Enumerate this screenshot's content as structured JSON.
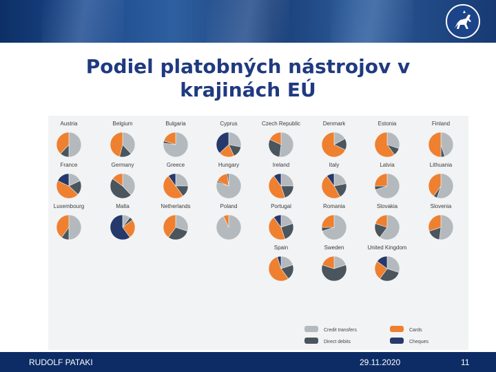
{
  "slide": {
    "title": "Podiel platobných nástrojov v krajinách EÚ",
    "author": "RUDOLF PATAKI",
    "date": "29.11.2020",
    "page_number": "11"
  },
  "colors": {
    "credit_transfers": "#b4b9bd",
    "direct_debits": "#4a555d",
    "cards": "#ee8030",
    "cheques": "#26396c",
    "title": "#1f3a80",
    "footer": "#0d2c66"
  },
  "chart_data": {
    "type": "pie",
    "legend_position": "bottom-right",
    "categories": [
      "Credit transfers",
      "Direct debits",
      "Cards",
      "Cheques"
    ],
    "legend": [
      "Credit transfers",
      "Direct debits",
      "Cards",
      "Cheques"
    ],
    "charts": [
      {
        "name": "Austria",
        "values": [
          50,
          12,
          38,
          0
        ]
      },
      {
        "name": "Belgium",
        "values": [
          38,
          16,
          46,
          0
        ]
      },
      {
        "name": "Bulgaria",
        "values": [
          77,
          3,
          20,
          0
        ]
      },
      {
        "name": "Cyprus",
        "values": [
          28,
          15,
          20,
          37
        ]
      },
      {
        "name": "Czech Republic",
        "values": [
          52,
          30,
          18,
          0
        ]
      },
      {
        "name": "Denmark",
        "values": [
          17,
          15,
          68,
          0
        ]
      },
      {
        "name": "Estonia",
        "values": [
          30,
          10,
          60,
          0
        ]
      },
      {
        "name": "Finland",
        "values": [
          45,
          5,
          50,
          0
        ]
      },
      {
        "name": "France",
        "values": [
          18,
          19,
          45,
          18
        ]
      },
      {
        "name": "Germany",
        "values": [
          38,
          47,
          15,
          0
        ]
      },
      {
        "name": "Greece",
        "values": [
          25,
          15,
          50,
          10
        ]
      },
      {
        "name": "Hungary",
        "values": [
          80,
          2,
          16,
          2
        ]
      },
      {
        "name": "Ireland",
        "values": [
          25,
          20,
          45,
          10
        ]
      },
      {
        "name": "Italy",
        "values": [
          22,
          20,
          48,
          10
        ]
      },
      {
        "name": "Latvia",
        "values": [
          70,
          5,
          25,
          0
        ]
      },
      {
        "name": "Lithuania",
        "values": [
          55,
          5,
          40,
          0
        ]
      },
      {
        "name": "Luxembourg",
        "values": [
          50,
          10,
          40,
          0
        ]
      },
      {
        "name": "Malta",
        "values": [
          10,
          5,
          25,
          60
        ]
      },
      {
        "name": "Netherlands",
        "values": [
          30,
          30,
          40,
          0
        ]
      },
      {
        "name": "Poland",
        "values": [
          93,
          0,
          7,
          0
        ]
      },
      {
        "name": "Portugal",
        "values": [
          20,
          25,
          45,
          10
        ]
      },
      {
        "name": "Romania",
        "values": [
          70,
          5,
          25,
          0
        ]
      },
      {
        "name": "Slovakia",
        "values": [
          60,
          20,
          20,
          0
        ]
      },
      {
        "name": "Slovenia",
        "values": [
          52,
          18,
          30,
          0
        ]
      },
      {
        "name": "Spain",
        "values": [
          20,
          20,
          55,
          5
        ]
      },
      {
        "name": "Sweden",
        "values": [
          20,
          60,
          20,
          0
        ]
      },
      {
        "name": "United Kingdom",
        "values": [
          30,
          30,
          25,
          15
        ]
      }
    ]
  }
}
